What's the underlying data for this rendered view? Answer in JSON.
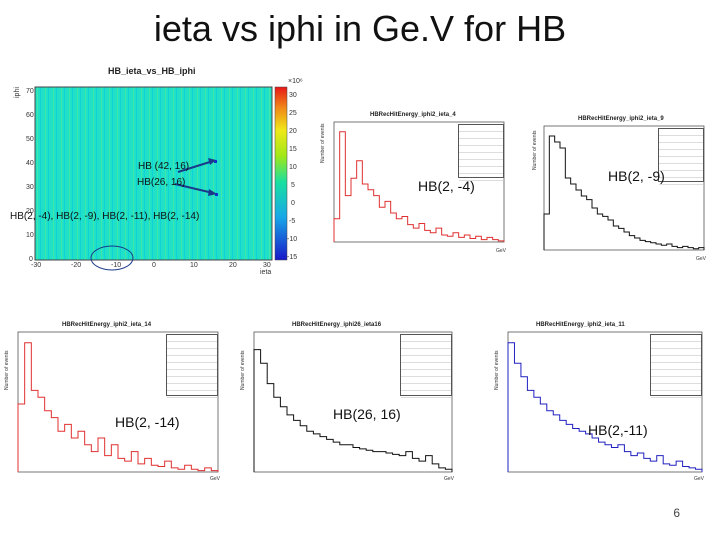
{
  "slide": {
    "title": "ieta vs iphi in Ge.V for HB",
    "page_number": "6"
  },
  "main_plot": {
    "title": "HB_ieta_vs_HB_iphi",
    "ylabel": "iphi",
    "xlabel": "ieta",
    "scale_label": "×10⁶",
    "x_ticks": [
      "-30",
      "-20",
      "-10",
      "0",
      "10",
      "20",
      "30"
    ],
    "y_ticks": [
      "70",
      "60",
      "50",
      "40",
      "30",
      "20",
      "10",
      "0"
    ],
    "z_ticks": [
      "30",
      "25",
      "20",
      "15",
      "10",
      "5",
      "0",
      "-5",
      "-10",
      "-15"
    ],
    "annotation_1": "HB (42, 16)",
    "annotation_2": "HB(26, 16)",
    "annotation_3": "HB(2, -4), HB(2, -9), HB(2, -11), HB(2, -14)"
  },
  "histograms": [
    {
      "title": "HBRecHitEnergy_iphi2_ieta_4",
      "label": "HB(2, -4)",
      "color": "#e03030",
      "ylabel": "Number of events",
      "xlabel": "GeV"
    },
    {
      "title": "HBRecHitEnergy_iphi2_ieta_9",
      "label": "HB(2, -9)",
      "color": "#111111",
      "ylabel": "Number of events",
      "xlabel": "GeV"
    },
    {
      "title": "HBRecHitEnergy_iphi2_ieta_14",
      "label": "HB(2, -14)",
      "color": "#e03030",
      "ylabel": "Number of events",
      "xlabel": "GeV"
    },
    {
      "title": "HBRecHitEnergy_iphi26_ieta16",
      "label": "HB(26, 16)",
      "color": "#111111",
      "ylabel": "Number of events",
      "xlabel": "GeV"
    },
    {
      "title": "HBRecHitEnergy_iphi2_ieta_11",
      "label": "HB(2,-11)",
      "color": "#2020c0",
      "ylabel": "Number of events",
      "xlabel": "GeV"
    }
  ]
}
